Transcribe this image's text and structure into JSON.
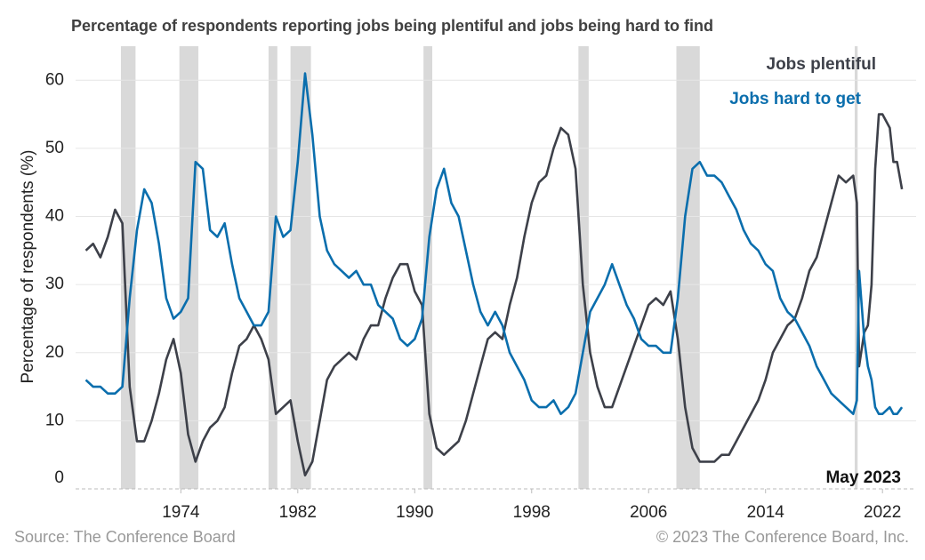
{
  "chart_data": {
    "type": "line",
    "title": "Percentage of respondents reporting jobs being plentiful and jobs being hard to find",
    "y_label": "Percentage of respondents (%)",
    "annotation": "May 2023",
    "source": "Source: The Conference Board",
    "copyright": "© 2023 The Conference Board, Inc.",
    "x": [
      1967.5,
      1968,
      1968.5,
      1969,
      1969.5,
      1970,
      1970.5,
      1971,
      1971.5,
      1972,
      1972.5,
      1973,
      1973.5,
      1974,
      1974.5,
      1975,
      1975.5,
      1976,
      1976.5,
      1977,
      1977.5,
      1978,
      1978.5,
      1979,
      1979.5,
      1980,
      1980.5,
      1981,
      1981.5,
      1982,
      1982.5,
      1983,
      1983.5,
      1984,
      1984.5,
      1985,
      1985.5,
      1986,
      1986.5,
      1987,
      1987.5,
      1988,
      1988.5,
      1989,
      1989.5,
      1990,
      1990.5,
      1991,
      1991.5,
      1992,
      1992.5,
      1993,
      1993.5,
      1994,
      1994.5,
      1995,
      1995.5,
      1996,
      1996.5,
      1997,
      1997.5,
      1998,
      1998.5,
      1999,
      1999.5,
      2000,
      2000.5,
      2001,
      2001.5,
      2002,
      2002.5,
      2003,
      2003.5,
      2004,
      2004.5,
      2005,
      2005.5,
      2006,
      2006.5,
      2007,
      2007.5,
      2008,
      2008.5,
      2009,
      2009.5,
      2010,
      2010.5,
      2011,
      2011.5,
      2012,
      2012.5,
      2013,
      2013.5,
      2014,
      2014.5,
      2015,
      2015.5,
      2016,
      2016.5,
      2017,
      2017.5,
      2018,
      2018.5,
      2019,
      2019.5,
      2020,
      2020.25,
      2020.4,
      2020.75,
      2021,
      2021.25,
      2021.5,
      2021.75,
      2022,
      2022.5,
      2022.75,
      2023,
      2023.33
    ],
    "series": [
      {
        "name": "Jobs plentiful",
        "color": "#3d4049",
        "values": [
          35,
          36,
          34,
          37,
          41,
          39,
          15,
          7,
          7,
          10,
          14,
          19,
          22,
          17,
          8,
          4,
          7,
          9,
          10,
          12,
          17,
          21,
          22,
          24,
          22,
          19,
          11,
          12,
          13,
          7,
          2,
          4,
          10,
          16,
          18,
          19,
          20,
          19,
          22,
          24,
          24,
          28,
          31,
          33,
          33,
          29,
          27,
          11,
          6,
          5,
          6,
          7,
          10,
          14,
          18,
          22,
          23,
          22,
          27,
          31,
          37,
          42,
          45,
          46,
          50,
          53,
          52,
          47,
          30,
          20,
          15,
          12,
          12,
          15,
          18,
          21,
          24,
          27,
          28,
          27,
          29,
          22,
          12,
          6,
          4,
          4,
          4,
          5,
          5,
          7,
          9,
          11,
          13,
          16,
          20,
          22,
          24,
          25,
          28,
          32,
          34,
          38,
          42,
          46,
          45,
          46,
          42,
          18,
          23,
          24,
          30,
          47,
          55,
          55,
          53,
          48,
          48,
          44
        ]
      },
      {
        "name": "Jobs hard to get",
        "color": "#0a6ead",
        "values": [
          16,
          15,
          15,
          14,
          14,
          15,
          28,
          38,
          44,
          42,
          36,
          28,
          25,
          26,
          28,
          48,
          47,
          38,
          37,
          39,
          33,
          28,
          26,
          24,
          24,
          26,
          40,
          37,
          38,
          48,
          61,
          52,
          40,
          35,
          33,
          32,
          31,
          32,
          30,
          30,
          27,
          26,
          25,
          22,
          21,
          22,
          25,
          37,
          44,
          47,
          42,
          40,
          35,
          30,
          26,
          24,
          26,
          24,
          20,
          18,
          16,
          13,
          12,
          12,
          13,
          11,
          12,
          14,
          20,
          26,
          28,
          30,
          33,
          30,
          27,
          25,
          22,
          21,
          21,
          20,
          20,
          28,
          40,
          47,
          48,
          46,
          46,
          45,
          43,
          41,
          38,
          36,
          35,
          33,
          32,
          28,
          26,
          25,
          23,
          21,
          18,
          16,
          14,
          13,
          12,
          11,
          13,
          32,
          22,
          18,
          16,
          12,
          11,
          11,
          12,
          11,
          11,
          12
        ]
      }
    ],
    "recessions": [
      [
        1969.9,
        1970.9
      ],
      [
        1973.9,
        1975.2
      ],
      [
        1980.0,
        1980.6
      ],
      [
        1981.5,
        1982.9
      ],
      [
        1990.6,
        1991.2
      ],
      [
        2001.2,
        2001.9
      ],
      [
        2007.9,
        2009.5
      ],
      [
        2020.1,
        2020.3
      ]
    ],
    "recession_color": "#d9d9d9",
    "xlim": [
      1966.8,
      2024.3
    ],
    "xticks": [
      1974,
      1982,
      1990,
      1998,
      2006,
      2014,
      2022
    ],
    "ylim": [
      0,
      65
    ],
    "yticks": [
      0,
      10,
      20,
      30,
      40,
      50,
      60
    ],
    "grid": true
  }
}
